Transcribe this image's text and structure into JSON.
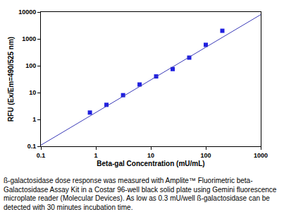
{
  "chart_data": {
    "type": "scatter",
    "x_label": "Beta-gal Concentration (mU/mL)",
    "y_label": "RFU (Ex/Em=490/525 nm)",
    "caption": "ß-galactosidase dose response was measured with Amplite™ Fluorimetric beta-Galactosidase Assay Kit in a Costar 96-well black solid plate using Gemini fluorescence microplate reader (Molecular Devices). As low as 0.3 mU/well ß-galactosidase can be detected with 30 minutes incubation time.",
    "log": true,
    "grid": false,
    "xlim": [
      0.1,
      1000
    ],
    "xticks": [
      0.1,
      1,
      10,
      100,
      1000
    ],
    "ylim": [
      0.1,
      10000
    ],
    "yticks": [
      0.1,
      1,
      10,
      100,
      1000,
      10000
    ],
    "series": [
      {
        "type": "scatter",
        "marker": "square",
        "color": "#1f1fe0",
        "x": [
          0.78,
          1.56,
          3.13,
          6.25,
          12.5,
          25,
          50,
          100,
          200
        ],
        "values": [
          1.8,
          3.5,
          8,
          20,
          40,
          75,
          200,
          600,
          2000
        ]
      },
      {
        "type": "line",
        "line_style": "solid",
        "color": "#3a3ab8",
        "x": [
          0.1,
          1000
        ],
        "values": [
          0.11,
          8000
        ]
      }
    ]
  }
}
